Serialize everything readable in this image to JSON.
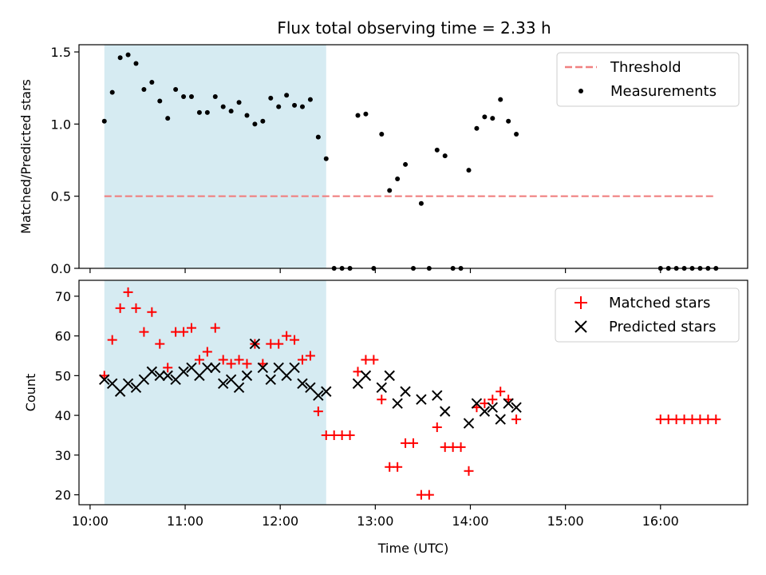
{
  "title": "Flux total observing time = 2.33 h",
  "xlabel": "Time (UTC)",
  "colors": {
    "threshold": "#f08080",
    "measurement": "#000000",
    "matched": "#ff0000",
    "predicted": "#000000",
    "shade": "#add8e6"
  },
  "chart_data": [
    {
      "type": "scatter",
      "ylabel": "Matched/Predicted stars",
      "xlim": [
        "09:53",
        "16:55"
      ],
      "ylim": [
        0,
        1.55
      ],
      "yticks": [
        0.0,
        0.5,
        1.0,
        1.5
      ],
      "ytick_labels": [
        "0.0",
        "0.5",
        "1.0",
        "1.5"
      ],
      "shaded_interval": [
        "10:09",
        "12:29"
      ],
      "legend": {
        "placement": "top-right",
        "entries": [
          "Threshold",
          "Measurements"
        ]
      },
      "threshold": {
        "name": "Threshold",
        "y": 0.5,
        "x": [
          "10:09",
          "16:35"
        ]
      },
      "measurements": {
        "name": "Measurements",
        "x": [
          "10:09",
          "10:14",
          "10:19",
          "10:24",
          "10:29",
          "10:34",
          "10:39",
          "10:44",
          "10:49",
          "10:54",
          "10:59",
          "11:04",
          "11:09",
          "11:14",
          "11:19",
          "11:24",
          "11:29",
          "11:34",
          "11:39",
          "11:44",
          "11:49",
          "11:54",
          "11:59",
          "12:04",
          "12:09",
          "12:14",
          "12:19",
          "12:24",
          "12:29",
          "12:34",
          "12:39",
          "12:44",
          "12:49",
          "12:54",
          "12:59",
          "13:04",
          "13:09",
          "13:14",
          "13:19",
          "13:24",
          "13:29",
          "13:34",
          "13:39",
          "13:44",
          "13:49",
          "13:54",
          "13:59",
          "14:04",
          "14:09",
          "14:14",
          "14:19",
          "14:24",
          "14:29",
          "16:00",
          "16:05",
          "16:10",
          "16:15",
          "16:20",
          "16:25",
          "16:30",
          "16:35"
        ],
        "y": [
          1.02,
          1.22,
          1.46,
          1.48,
          1.42,
          1.24,
          1.29,
          1.16,
          1.04,
          1.24,
          1.19,
          1.19,
          1.08,
          1.08,
          1.19,
          1.12,
          1.09,
          1.15,
          1.06,
          1.0,
          1.02,
          1.18,
          1.12,
          1.2,
          1.13,
          1.12,
          1.17,
          0.91,
          0.76,
          0.0,
          0.0,
          0.0,
          1.06,
          1.07,
          0.0,
          0.93,
          0.54,
          0.62,
          0.72,
          0.0,
          0.45,
          0.0,
          0.82,
          0.78,
          0.0,
          0.0,
          0.68,
          0.97,
          1.05,
          1.04,
          1.17,
          1.02,
          0.93,
          0.0,
          0.0,
          0.0,
          0.0,
          0.0,
          0.0,
          0.0,
          0.0
        ]
      }
    },
    {
      "type": "scatter",
      "ylabel": "Count",
      "xlabel": "Time (UTC)",
      "xlim": [
        "09:53",
        "16:55"
      ],
      "ylim": [
        17.5,
        74
      ],
      "yticks": [
        20,
        30,
        40,
        50,
        60,
        70
      ],
      "ytick_labels": [
        "20",
        "30",
        "40",
        "50",
        "60",
        "70"
      ],
      "xticks": [
        "10:00",
        "11:00",
        "12:00",
        "13:00",
        "14:00",
        "15:00",
        "16:00"
      ],
      "xtick_labels": [
        "10:00",
        "11:00",
        "12:00",
        "13:00",
        "14:00",
        "15:00",
        "16:00"
      ],
      "shaded_interval": [
        "10:09",
        "12:29"
      ],
      "legend": {
        "placement": "top-right",
        "entries": [
          "Matched stars",
          "Predicted stars"
        ]
      },
      "matched": {
        "name": "Matched stars",
        "x": [
          "10:09",
          "10:14",
          "10:19",
          "10:24",
          "10:29",
          "10:34",
          "10:39",
          "10:44",
          "10:49",
          "10:54",
          "10:59",
          "11:04",
          "11:09",
          "11:14",
          "11:19",
          "11:24",
          "11:29",
          "11:34",
          "11:39",
          "11:44",
          "11:49",
          "11:54",
          "11:59",
          "12:04",
          "12:09",
          "12:14",
          "12:19",
          "12:24",
          "12:29",
          "12:34",
          "12:39",
          "12:44",
          "12:49",
          "12:54",
          "12:59",
          "13:04",
          "13:09",
          "13:14",
          "13:19",
          "13:24",
          "13:29",
          "13:34",
          "13:39",
          "13:44",
          "13:49",
          "13:54",
          "13:59",
          "14:04",
          "14:09",
          "14:14",
          "14:19",
          "14:24",
          "14:29",
          "16:00",
          "16:05",
          "16:10",
          "16:15",
          "16:20",
          "16:25",
          "16:30",
          "16:35"
        ],
        "y": [
          50,
          59,
          67,
          71,
          67,
          61,
          66,
          58,
          52,
          61,
          61,
          62,
          54,
          56,
          62,
          54,
          53,
          54,
          53,
          58,
          53,
          58,
          58,
          60,
          59,
          54,
          55,
          41,
          35,
          35,
          35,
          35,
          51,
          54,
          54,
          44,
          27,
          27,
          33,
          33,
          20,
          20,
          37,
          32,
          32,
          32,
          26,
          42,
          43,
          44,
          46,
          44,
          39,
          39,
          39,
          39,
          39,
          39,
          39,
          39,
          39
        ]
      },
      "predicted": {
        "name": "Predicted stars",
        "x": [
          "10:09",
          "10:14",
          "10:19",
          "10:24",
          "10:29",
          "10:34",
          "10:39",
          "10:44",
          "10:49",
          "10:54",
          "10:59",
          "11:04",
          "11:09",
          "11:14",
          "11:19",
          "11:24",
          "11:29",
          "11:34",
          "11:39",
          "11:44",
          "11:49",
          "11:54",
          "11:59",
          "12:04",
          "12:09",
          "12:14",
          "12:19",
          "12:24",
          "12:29",
          "12:49",
          "12:54",
          "13:04",
          "13:09",
          "13:14",
          "13:19",
          "13:29",
          "13:39",
          "13:44",
          "13:59",
          "14:04",
          "14:09",
          "14:14",
          "14:19",
          "14:24",
          "14:29"
        ],
        "y": [
          49,
          48,
          46,
          48,
          47,
          49,
          51,
          50,
          50,
          49,
          51,
          52,
          50,
          52,
          52,
          48,
          49,
          47,
          50,
          58,
          52,
          49,
          52,
          50,
          52,
          48,
          47,
          45,
          46,
          48,
          50,
          47,
          50,
          43,
          46,
          44,
          45,
          41,
          38,
          43,
          41,
          42,
          39,
          43,
          42
        ]
      }
    }
  ]
}
